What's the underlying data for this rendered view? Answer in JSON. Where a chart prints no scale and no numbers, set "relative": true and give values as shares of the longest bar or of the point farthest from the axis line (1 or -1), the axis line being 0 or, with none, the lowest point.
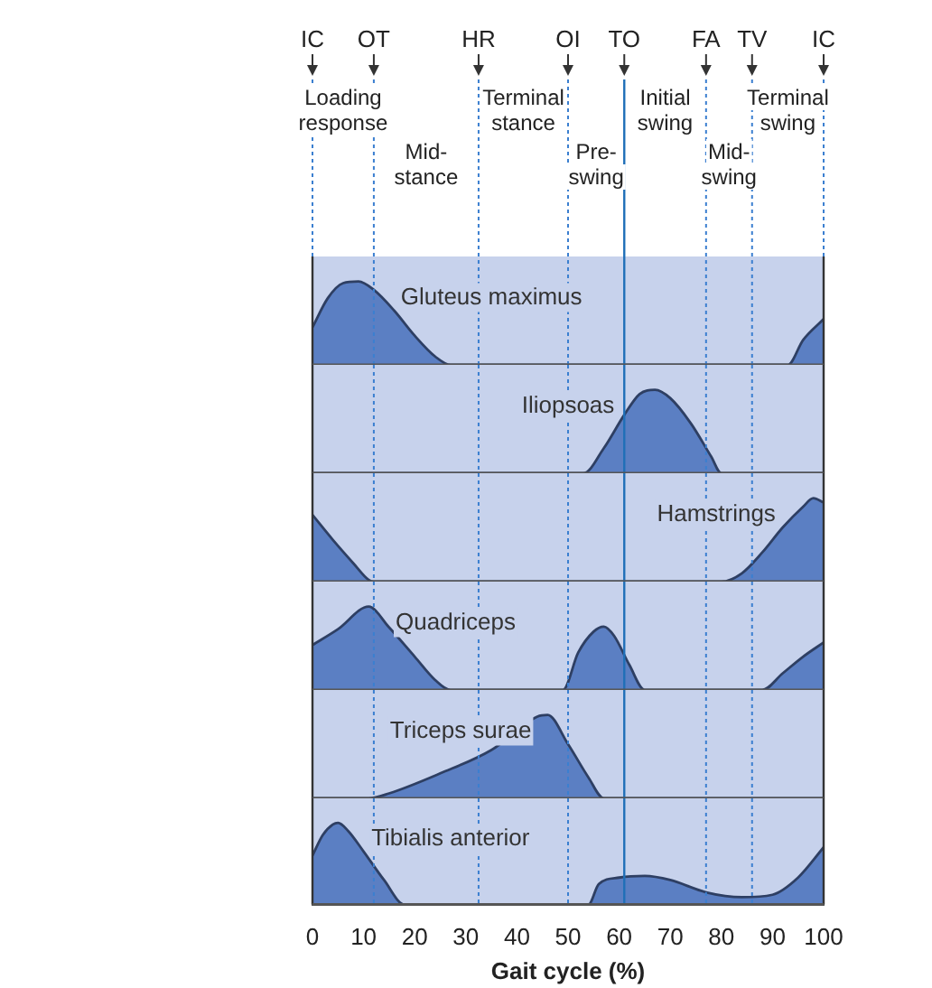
{
  "chart_data": [
    {
      "type": "area",
      "relative": true,
      "xlim": [
        0,
        100
      ],
      "tick_labels": false,
      "series": [
        {
          "name": "Gluteus maximus",
          "color": "#5b7fc3",
          "x": [
            0,
            3,
            6,
            9,
            12,
            16,
            20,
            24,
            27,
            93,
            96,
            100
          ],
          "values": [
            0.45,
            0.8,
            0.98,
            1,
            0.9,
            0.65,
            0.35,
            0.1,
            0,
            0,
            0.3,
            0.55
          ]
        }
      ],
      "ref_lines": [
        {
          "axis": "x",
          "value": 0,
          "label": "IC",
          "line_style": "dashed",
          "color": "#3b7fd0"
        },
        {
          "axis": "x",
          "value": 12,
          "label": "OT",
          "line_style": "dashed",
          "color": "#3b7fd0"
        },
        {
          "axis": "x",
          "value": 32.5,
          "label": "HR",
          "line_style": "dashed",
          "color": "#3b7fd0"
        },
        {
          "axis": "x",
          "value": 50,
          "label": "OI",
          "line_style": "dashed",
          "color": "#3b7fd0"
        },
        {
          "axis": "x",
          "value": 61,
          "label": "TO",
          "line_style": "solid",
          "color": "#1f6fb8"
        },
        {
          "axis": "x",
          "value": 77,
          "label": "FA",
          "line_style": "dashed",
          "color": "#3b7fd0"
        },
        {
          "axis": "x",
          "value": 86,
          "label": "TV",
          "line_style": "dashed",
          "color": "#3b7fd0"
        },
        {
          "axis": "x",
          "value": 100,
          "label": "IC",
          "line_style": "dashed",
          "color": "#3b7fd0"
        }
      ],
      "annotations": [
        "Loading response",
        "Mid-stance",
        "Terminal stance",
        "Pre-swing",
        "Initial swing",
        "Mid-swing",
        "Terminal swing"
      ]
    },
    {
      "type": "area",
      "relative": true,
      "xlim": [
        0,
        100
      ],
      "tick_labels": false,
      "series": [
        {
          "name": "Iliopsoas",
          "color": "#5b7fc3",
          "x": [
            0,
            53,
            57,
            61,
            64,
            67,
            70,
            74,
            78,
            80,
            100
          ],
          "values": [
            0,
            0,
            0.3,
            0.7,
            0.95,
            1,
            0.9,
            0.6,
            0.2,
            0,
            0
          ]
        }
      ],
      "ref_lines": [
        {
          "axis": "x",
          "value": 12,
          "line_style": "dashed",
          "color": "#3b7fd0"
        },
        {
          "axis": "x",
          "value": 32.5,
          "line_style": "dashed",
          "color": "#3b7fd0"
        },
        {
          "axis": "x",
          "value": 50,
          "line_style": "dashed",
          "color": "#3b7fd0"
        },
        {
          "axis": "x",
          "value": 61,
          "line_style": "solid",
          "color": "#1f6fb8"
        },
        {
          "axis": "x",
          "value": 77,
          "line_style": "dashed",
          "color": "#3b7fd0"
        },
        {
          "axis": "x",
          "value": 86,
          "line_style": "dashed",
          "color": "#3b7fd0"
        }
      ]
    },
    {
      "type": "area",
      "relative": true,
      "xlim": [
        0,
        100
      ],
      "tick_labels": false,
      "series": [
        {
          "name": "Hamstrings",
          "color": "#5b7fc3",
          "x": [
            0,
            4,
            8,
            11,
            12,
            80,
            84,
            88,
            92,
            96,
            98,
            100
          ],
          "values": [
            0.8,
            0.5,
            0.22,
            0.02,
            0,
            0,
            0.1,
            0.35,
            0.65,
            0.9,
            1,
            0.95
          ]
        }
      ],
      "ref_lines": [
        {
          "axis": "x",
          "value": 12,
          "line_style": "dashed",
          "color": "#3b7fd0"
        },
        {
          "axis": "x",
          "value": 32.5,
          "line_style": "dashed",
          "color": "#3b7fd0"
        },
        {
          "axis": "x",
          "value": 50,
          "line_style": "dashed",
          "color": "#3b7fd0"
        },
        {
          "axis": "x",
          "value": 61,
          "line_style": "solid",
          "color": "#1f6fb8"
        },
        {
          "axis": "x",
          "value": 77,
          "line_style": "dashed",
          "color": "#3b7fd0"
        },
        {
          "axis": "x",
          "value": 86,
          "line_style": "dashed",
          "color": "#3b7fd0"
        }
      ]
    },
    {
      "type": "area",
      "relative": true,
      "xlim": [
        0,
        100
      ],
      "tick_labels": false,
      "series": [
        {
          "name": "Quadriceps",
          "color": "#5b7fc3",
          "x": [
            0,
            5,
            11,
            15,
            20,
            24,
            27,
            49,
            52,
            55,
            57,
            59,
            62,
            65,
            88,
            92,
            96,
            100
          ],
          "values": [
            0.54,
            0.73,
            1,
            0.75,
            0.4,
            0.12,
            0,
            0,
            0.45,
            0.7,
            0.76,
            0.65,
            0.3,
            0,
            0,
            0.2,
            0.4,
            0.57
          ]
        }
      ],
      "ref_lines": [
        {
          "axis": "x",
          "value": 12,
          "line_style": "dashed",
          "color": "#3b7fd0"
        },
        {
          "axis": "x",
          "value": 32.5,
          "line_style": "dashed",
          "color": "#3b7fd0"
        },
        {
          "axis": "x",
          "value": 50,
          "line_style": "dashed",
          "color": "#3b7fd0"
        },
        {
          "axis": "x",
          "value": 61,
          "line_style": "solid",
          "color": "#1f6fb8"
        },
        {
          "axis": "x",
          "value": 77,
          "line_style": "dashed",
          "color": "#3b7fd0"
        },
        {
          "axis": "x",
          "value": 86,
          "line_style": "dashed",
          "color": "#3b7fd0"
        }
      ]
    },
    {
      "type": "area",
      "relative": true,
      "xlim": [
        0,
        100
      ],
      "tick_labels": false,
      "series": [
        {
          "name": "Triceps surae",
          "color": "#5b7fc3",
          "x": [
            0,
            11,
            15,
            25,
            35,
            44,
            46,
            50,
            54,
            57,
            100
          ],
          "values": [
            0,
            0,
            0.06,
            0.3,
            0.58,
            0.98,
            1,
            0.65,
            0.25,
            0,
            0
          ]
        }
      ],
      "ref_lines": [
        {
          "axis": "x",
          "value": 12,
          "line_style": "dashed",
          "color": "#3b7fd0"
        },
        {
          "axis": "x",
          "value": 32.5,
          "line_style": "dashed",
          "color": "#3b7fd0"
        },
        {
          "axis": "x",
          "value": 50,
          "line_style": "dashed",
          "color": "#3b7fd0"
        },
        {
          "axis": "x",
          "value": 61,
          "line_style": "solid",
          "color": "#1f6fb8"
        },
        {
          "axis": "x",
          "value": 77,
          "line_style": "dashed",
          "color": "#3b7fd0"
        },
        {
          "axis": "x",
          "value": 86,
          "line_style": "dashed",
          "color": "#3b7fd0"
        }
      ]
    },
    {
      "type": "area",
      "relative": true,
      "xlim": [
        0,
        100
      ],
      "tick_labels": "x",
      "xlabel": "Gait cycle (%)",
      "xticks": [
        0,
        10,
        20,
        30,
        40,
        50,
        60,
        70,
        80,
        90,
        100
      ],
      "series": [
        {
          "name": "Tibialis anterior",
          "color": "#5b7fc3",
          "x": [
            0,
            2,
            4,
            5,
            7,
            10,
            14,
            18,
            54,
            56,
            60,
            65,
            70,
            77,
            84,
            90,
            95,
            100
          ],
          "values": [
            0.6,
            0.85,
            0.98,
            1,
            0.9,
            0.65,
            0.3,
            0,
            0,
            0.25,
            0.33,
            0.35,
            0.3,
            0.15,
            0.09,
            0.12,
            0.33,
            0.7
          ]
        }
      ],
      "ref_lines": [
        {
          "axis": "x",
          "value": 12,
          "line_style": "dashed",
          "color": "#3b7fd0"
        },
        {
          "axis": "x",
          "value": 32.5,
          "line_style": "dashed",
          "color": "#3b7fd0"
        },
        {
          "axis": "x",
          "value": 50,
          "line_style": "dashed",
          "color": "#3b7fd0"
        },
        {
          "axis": "x",
          "value": 61,
          "line_style": "solid",
          "color": "#1f6fb8"
        },
        {
          "axis": "x",
          "value": 77,
          "line_style": "dashed",
          "color": "#3b7fd0"
        },
        {
          "axis": "x",
          "value": 86,
          "line_style": "dashed",
          "color": "#3b7fd0"
        }
      ]
    }
  ]
}
